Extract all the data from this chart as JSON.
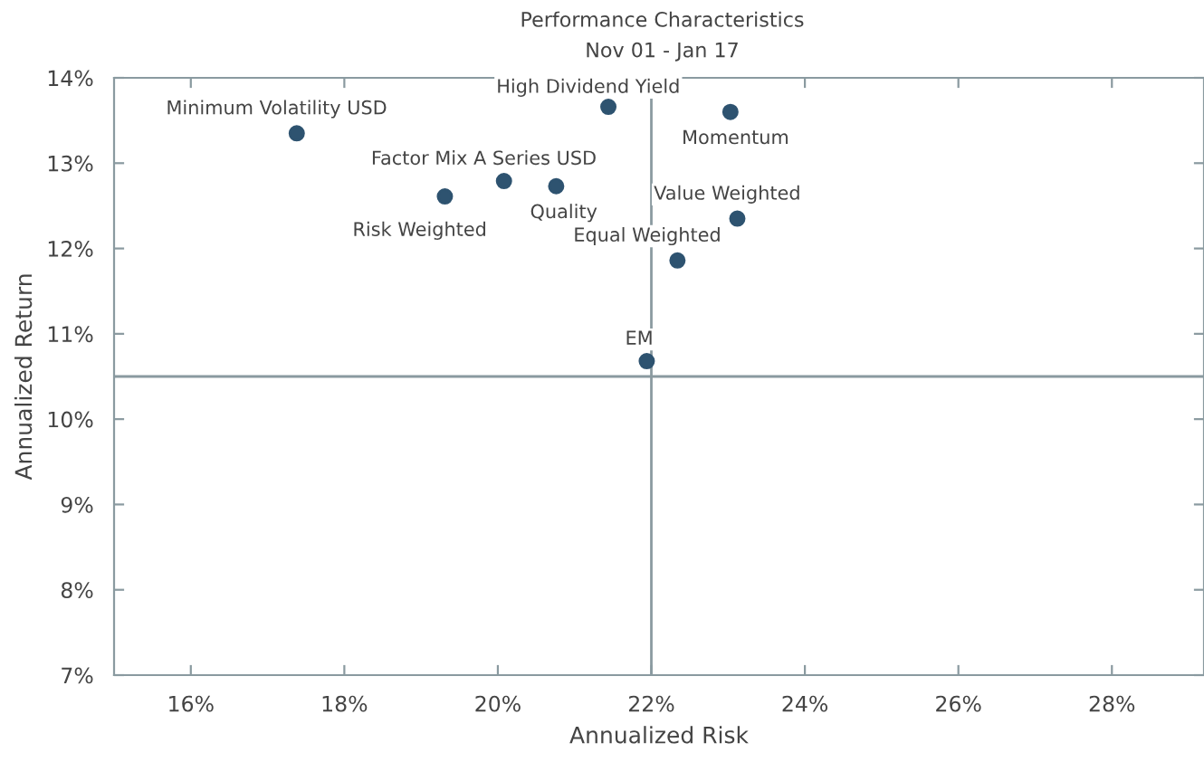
{
  "chart_data": {
    "type": "scatter",
    "title": "Performance Characteristics",
    "subtitle": "Nov 01 - Jan 17",
    "xlabel": "Annualized Risk",
    "ylabel": "Annualized Return",
    "series": [
      {
        "color": "#2e5370",
        "x": [
          17.38,
          21.44,
          23.03,
          20.08,
          20.76,
          19.31,
          23.12,
          22.34,
          21.94
        ],
        "values": [
          13.35,
          13.66,
          13.6,
          12.79,
          12.73,
          12.61,
          12.35,
          11.86,
          10.68
        ]
      }
    ],
    "annotations": [
      {
        "text": "Minimum Volatility USD",
        "x": 17.38,
        "y": 13.35
      },
      {
        "text": "High Dividend Yield",
        "x": 21.44,
        "y": 13.66
      },
      {
        "text": "Momentum",
        "x": 23.03,
        "y": 13.6
      },
      {
        "text": "Factor Mix A Series USD",
        "x": 20.08,
        "y": 12.79
      },
      {
        "text": "Quality",
        "x": 20.76,
        "y": 12.73
      },
      {
        "text": "Risk Weighted",
        "x": 19.31,
        "y": 12.61
      },
      {
        "text": "Value Weighted",
        "x": 23.12,
        "y": 12.35
      },
      {
        "text": "Equal Weighted",
        "x": 22.34,
        "y": 11.86
      },
      {
        "text": "EM",
        "x": 21.94,
        "y": 10.68
      }
    ],
    "ref_lines": [
      {
        "axis": "x",
        "value": 22.0,
        "color": "#8a9aa0"
      },
      {
        "axis": "y",
        "value": 10.5,
        "color": "#8a9aa0"
      }
    ],
    "xlim": [
      15,
      29.2
    ],
    "ylim": [
      7,
      14
    ],
    "xticks": [
      {
        "value": 16,
        "label": "16%"
      },
      {
        "value": 18,
        "label": "18%"
      },
      {
        "value": 20,
        "label": "20%"
      },
      {
        "value": 22,
        "label": "22%"
      },
      {
        "value": 24,
        "label": "24%"
      },
      {
        "value": 26,
        "label": "26%"
      },
      {
        "value": 28,
        "label": "28%"
      }
    ],
    "yticks": [
      {
        "value": 7,
        "label": "7%"
      },
      {
        "value": 8,
        "label": "8%"
      },
      {
        "value": 9,
        "label": "9%"
      },
      {
        "value": 10,
        "label": "10%"
      },
      {
        "value": 11,
        "label": "11%"
      },
      {
        "value": 12,
        "label": "12%"
      },
      {
        "value": 13,
        "label": "13%"
      },
      {
        "value": 14,
        "label": "14%"
      }
    ],
    "grid": false,
    "marker": "circle"
  }
}
